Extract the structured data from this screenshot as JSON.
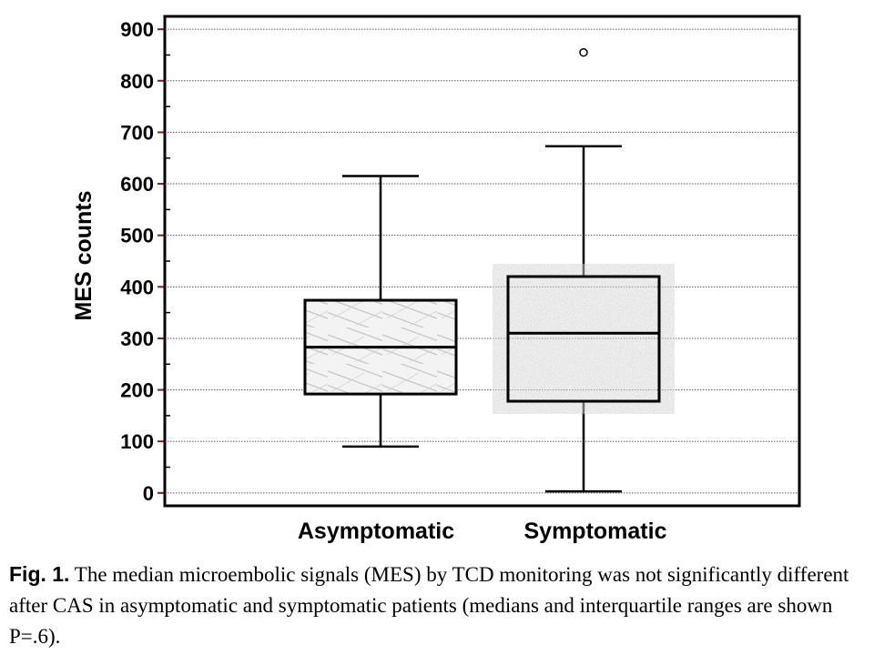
{
  "chart_data": {
    "type": "box",
    "ylabel": "MES counts",
    "ylim": [
      -25,
      925
    ],
    "yticks": [
      0,
      100,
      200,
      300,
      400,
      500,
      600,
      700,
      800,
      900
    ],
    "grid": true,
    "categories": [
      "Asymptomatic",
      "Symptomatic"
    ],
    "boxes": [
      {
        "category": "Asymptomatic",
        "min": 90,
        "q1": 192,
        "median": 283,
        "q3": 374,
        "max": 615,
        "outliers": [],
        "fill": "marble"
      },
      {
        "category": "Symptomatic",
        "min": 3,
        "q1": 178,
        "median": 310,
        "q3": 420,
        "max": 673,
        "outliers": [
          855
        ],
        "fill": "granite"
      }
    ]
  },
  "caption": {
    "label": "Fig. 1.",
    "text": " The median microembolic signals (MES) by TCD monitoring was not significantly different after CAS in asymptomatic and symptomatic patients (medians and interquartile ranges are shown P=.6)."
  },
  "colors": {
    "tick_mark": "#8b1a1a",
    "grid": "#555555",
    "box_stroke": "#000000"
  }
}
